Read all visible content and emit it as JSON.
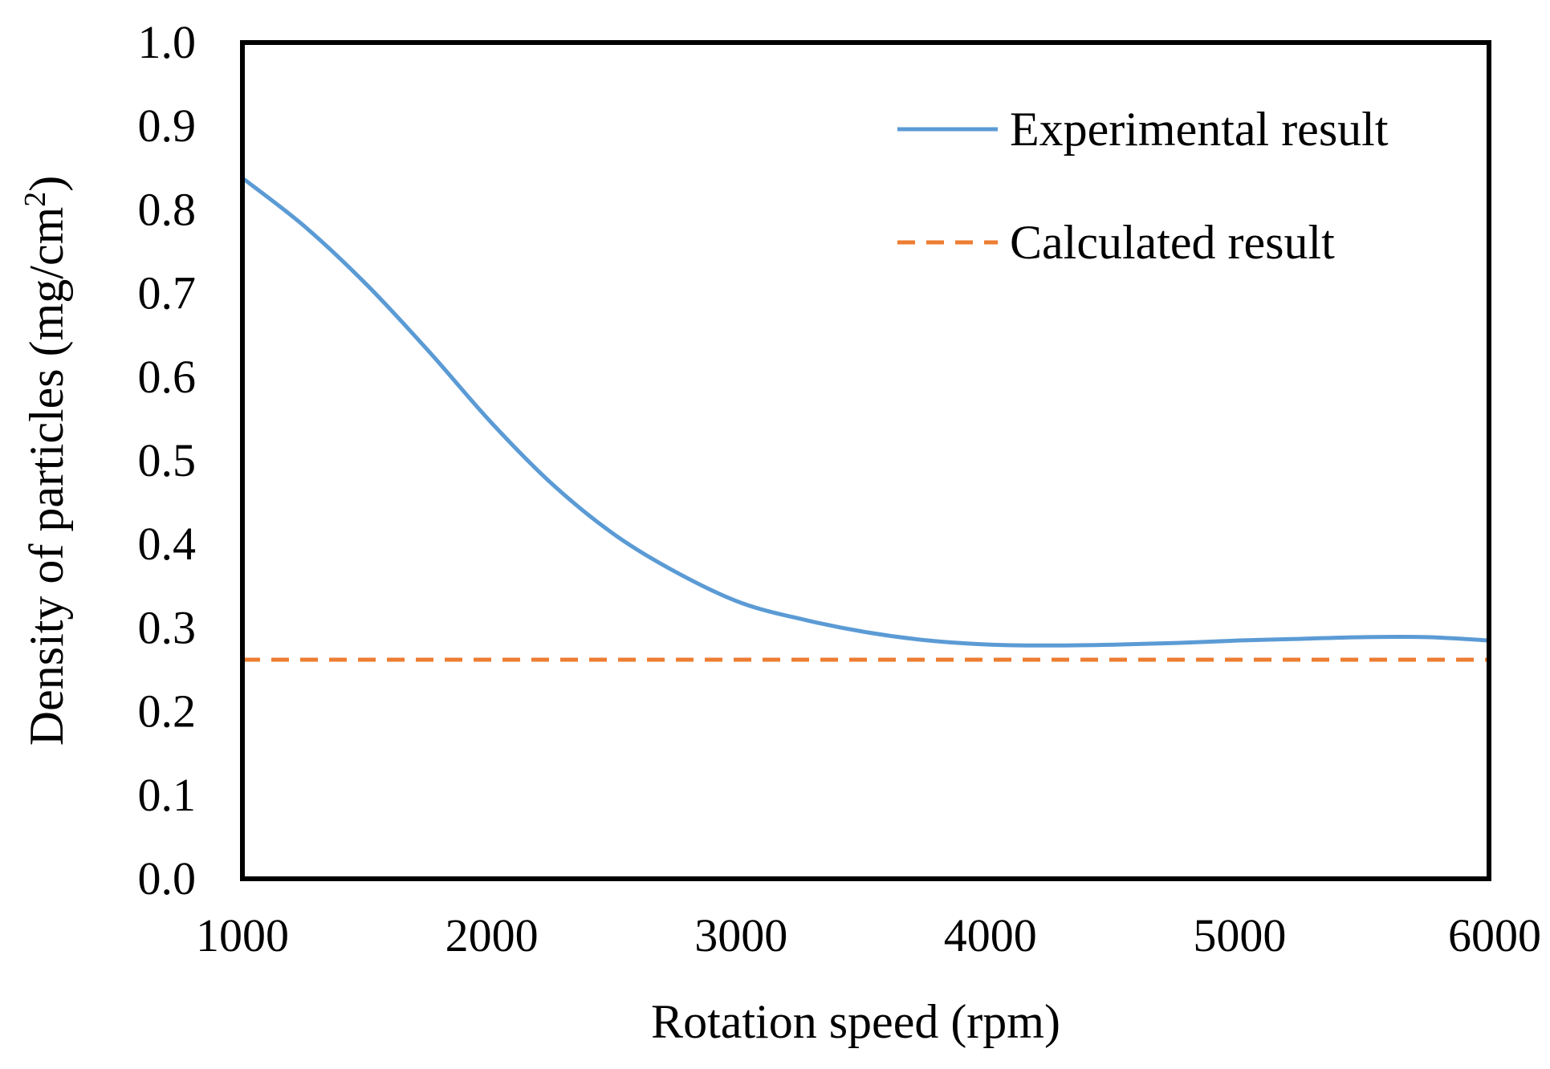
{
  "chart_data": {
    "type": "line",
    "title": "",
    "xlabel": "Rotation  speed (rpm)",
    "ylabel_main": "Density of particles (mg/cm",
    "ylabel_sup": "2",
    "ylabel_close": ")",
    "xlim": [
      1000,
      6000
    ],
    "ylim": [
      0.0,
      1.0
    ],
    "xticks": [
      1000,
      2000,
      3000,
      4000,
      5000,
      6000
    ],
    "xtick_labels": [
      "1000",
      "2000",
      "3000",
      "4000",
      "5000",
      "6000"
    ],
    "yticks": [
      0.0,
      0.1,
      0.2,
      0.3,
      0.4,
      0.5,
      0.6,
      0.7,
      0.8,
      0.9,
      1.0
    ],
    "ytick_labels": [
      "0.0",
      "0.1",
      "0.2",
      "0.3",
      "0.4",
      "0.5",
      "0.6",
      "0.7",
      "0.8",
      "0.9",
      "1.0"
    ],
    "grid": false,
    "legend_position": "top-right",
    "series": [
      {
        "name": "Experimental result",
        "style": "solid",
        "color": "#5b9bd5",
        "x": [
          1000,
          1250,
          1500,
          1750,
          2000,
          2250,
          2500,
          2750,
          3000,
          3250,
          3500,
          3750,
          4000,
          4250,
          4500,
          4750,
          5000,
          5250,
          5500,
          5750,
          6000
        ],
        "y": [
          0.838,
          0.78,
          0.71,
          0.63,
          0.545,
          0.47,
          0.41,
          0.365,
          0.33,
          0.31,
          0.295,
          0.285,
          0.28,
          0.279,
          0.28,
          0.282,
          0.285,
          0.287,
          0.289,
          0.289,
          0.285
        ]
      },
      {
        "name": "Calculated result",
        "style": "dashed",
        "color": "#ed7d31",
        "x": [
          1000,
          6000
        ],
        "y": [
          0.262,
          0.262
        ]
      }
    ]
  }
}
